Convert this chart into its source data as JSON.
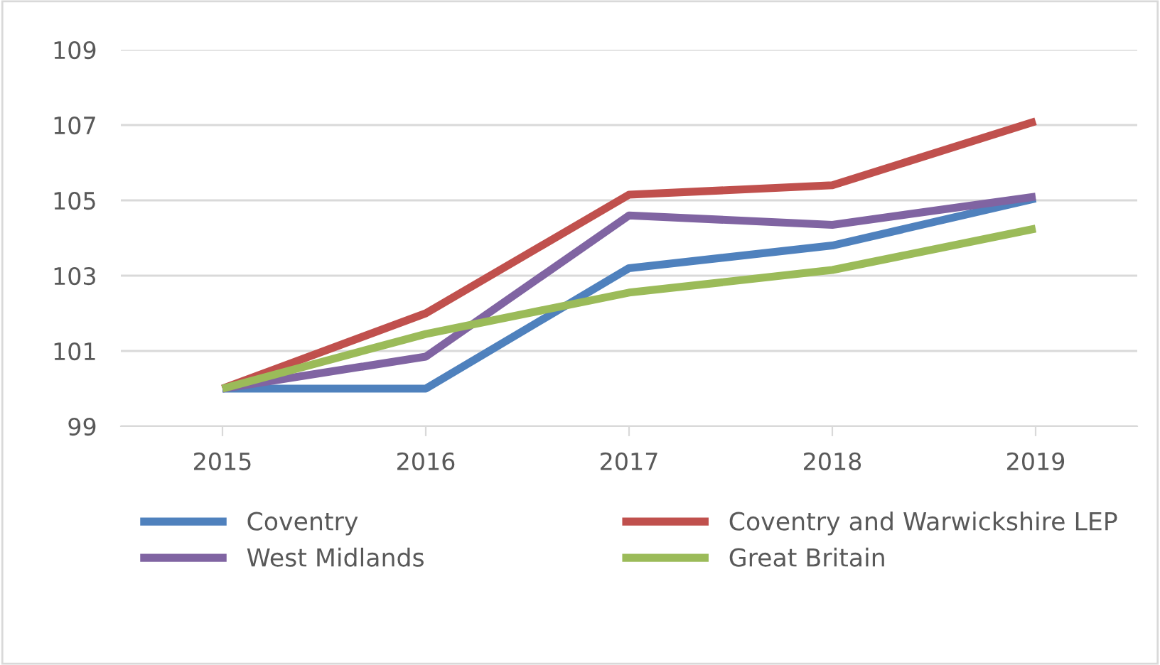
{
  "chart_data": {
    "type": "line",
    "categories": [
      "2015",
      "2016",
      "2017",
      "2018",
      "2019"
    ],
    "series": [
      {
        "name": "Coventry",
        "color": "#4f81bd",
        "values": [
          100,
          100,
          103.2,
          103.8,
          105.05
        ]
      },
      {
        "name": "Coventry and Warwickshire LEP",
        "color": "#c0504d",
        "values": [
          100,
          102.0,
          105.15,
          105.4,
          107.1
        ]
      },
      {
        "name": "West Midlands",
        "color": "#8064a2",
        "values": [
          100,
          100.85,
          104.6,
          104.35,
          105.1
        ]
      },
      {
        "name": "Great Britain",
        "color": "#9bbb59",
        "values": [
          100,
          101.45,
          102.55,
          103.15,
          104.25
        ]
      }
    ],
    "ylim": [
      99,
      109
    ],
    "yticks": [
      99,
      101,
      103,
      105,
      107,
      109
    ],
    "grid": "y",
    "legend": "bottom",
    "marker": "none",
    "line_style": "solid"
  }
}
